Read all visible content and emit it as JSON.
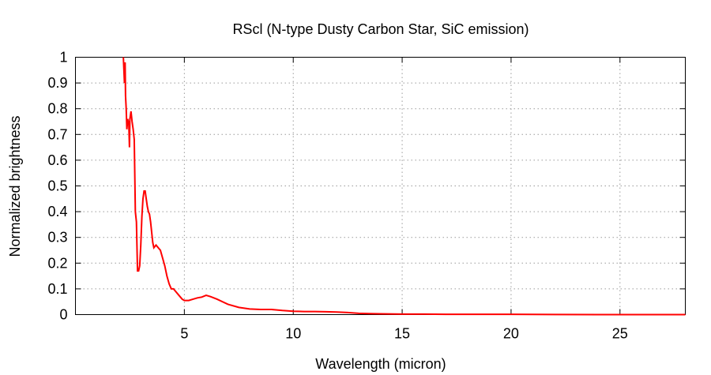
{
  "chart_data": {
    "type": "line",
    "title": "RScl (N-type Dusty Carbon Star, SiC emission)",
    "xlabel": "Wavelength (micron)",
    "ylabel": "Normalized brightness",
    "xlim": [
      0,
      28
    ],
    "ylim": [
      0,
      1
    ],
    "xticks": [
      5,
      10,
      15,
      20,
      25
    ],
    "xtick_labels": [
      "5",
      "10",
      "15",
      "20",
      "25"
    ],
    "yticks": [
      0,
      0.1,
      0.2,
      0.3,
      0.4,
      0.5,
      0.6,
      0.7,
      0.8,
      0.9,
      1
    ],
    "ytick_labels": [
      "0",
      "0.1",
      "0.2",
      "0.3",
      "0.4",
      "0.5",
      "0.6",
      "0.7",
      "0.8",
      "0.9",
      "1"
    ],
    "grid": true,
    "line_color": "#ff0000",
    "series": [
      {
        "x": [
          2.2,
          2.25,
          2.28,
          2.3,
          2.33,
          2.36,
          2.4,
          2.45,
          2.48,
          2.5,
          2.55,
          2.6,
          2.65,
          2.7,
          2.75,
          2.8,
          2.85,
          2.88,
          2.9,
          2.95,
          3.0,
          3.05,
          3.1,
          3.15,
          3.2,
          3.25,
          3.3,
          3.35,
          3.4,
          3.45,
          3.5,
          3.55,
          3.6,
          3.7,
          3.8,
          3.9,
          4.0,
          4.1,
          4.2,
          4.3,
          4.4,
          4.5,
          4.6,
          4.7,
          4.8,
          4.9,
          5.0,
          5.2,
          5.4,
          5.6,
          5.8,
          6.0,
          6.2,
          6.5,
          7.0,
          7.5,
          8.0,
          8.5,
          9.0,
          9.5,
          10.0,
          10.5,
          11.0,
          11.5,
          12.0,
          12.5,
          13.0,
          13.5,
          14.0,
          15.0,
          16.0,
          17.0,
          18.0,
          20.0,
          22.0,
          24.0,
          26.0,
          28.0
        ],
        "y": [
          1.0,
          0.9,
          0.98,
          0.85,
          0.8,
          0.72,
          0.76,
          0.74,
          0.65,
          0.76,
          0.79,
          0.75,
          0.72,
          0.68,
          0.4,
          0.36,
          0.17,
          0.17,
          0.17,
          0.19,
          0.27,
          0.38,
          0.45,
          0.48,
          0.48,
          0.45,
          0.42,
          0.4,
          0.39,
          0.36,
          0.32,
          0.28,
          0.26,
          0.27,
          0.26,
          0.25,
          0.22,
          0.19,
          0.15,
          0.12,
          0.1,
          0.1,
          0.09,
          0.08,
          0.07,
          0.06,
          0.055,
          0.055,
          0.06,
          0.065,
          0.068,
          0.075,
          0.07,
          0.06,
          0.04,
          0.028,
          0.022,
          0.02,
          0.02,
          0.016,
          0.013,
          0.012,
          0.012,
          0.011,
          0.01,
          0.008,
          0.005,
          0.004,
          0.003,
          0.002,
          0.002,
          0.001,
          0.001,
          0.001,
          0.0005,
          0.0,
          0.0,
          0.0
        ]
      }
    ]
  }
}
